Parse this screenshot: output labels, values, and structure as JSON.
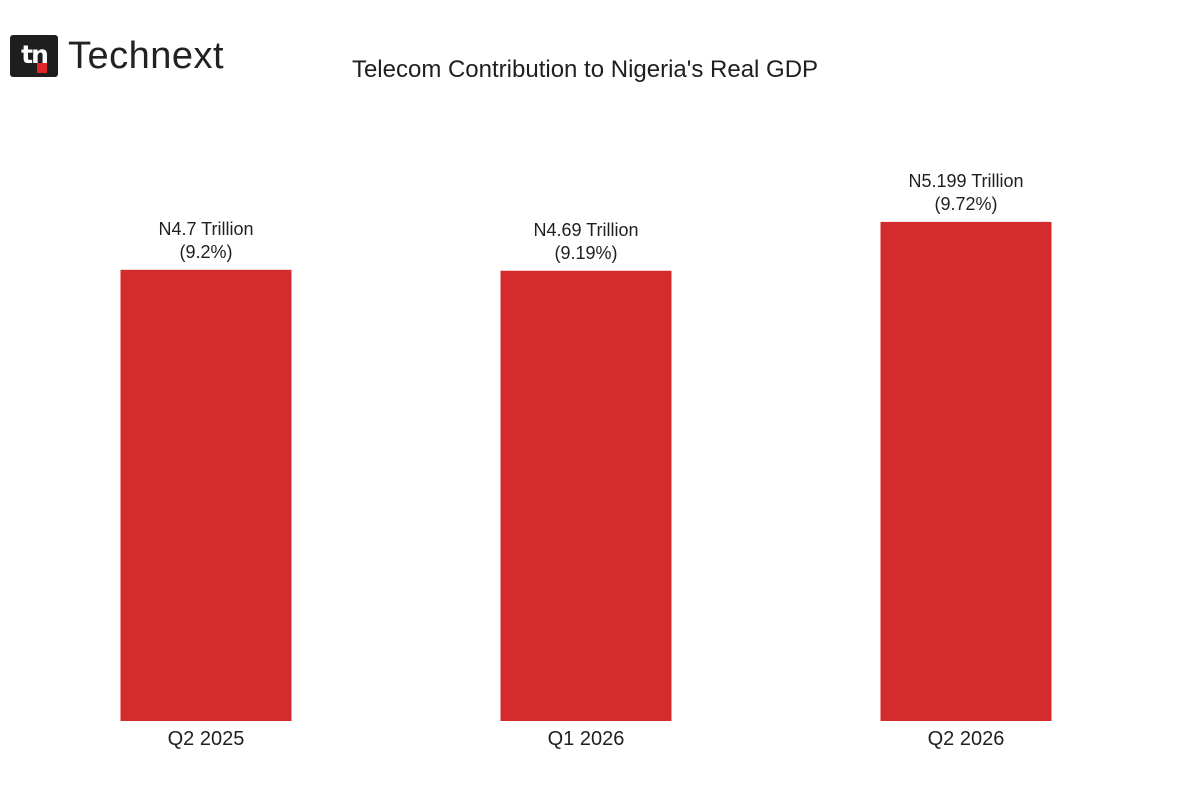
{
  "brand": {
    "mark_text": "tn",
    "name": "Technext",
    "accent_color": "#e0252b"
  },
  "chart_data": {
    "type": "bar",
    "title": "Telecom Contribution to Nigeria's Real GDP",
    "xlabel": "",
    "ylabel": "",
    "categories": [
      "Q2 2025",
      "Q1 2026",
      "Q2 2026"
    ],
    "values": [
      4.7,
      4.69,
      5.199
    ],
    "value_labels": [
      "N4.7 Trillion",
      "N4.69 Trillion",
      "N5.199 Trillion"
    ],
    "share_labels": [
      "(9.2%)",
      "(9.19%)",
      "(9.72%)"
    ],
    "share_of_gdp_percent": [
      9.2,
      9.19,
      9.72
    ],
    "unit": "Trillion",
    "ylim": [
      0,
      5.8
    ],
    "bar_color": "#d42c2c",
    "grid": false,
    "legend": "none"
  }
}
